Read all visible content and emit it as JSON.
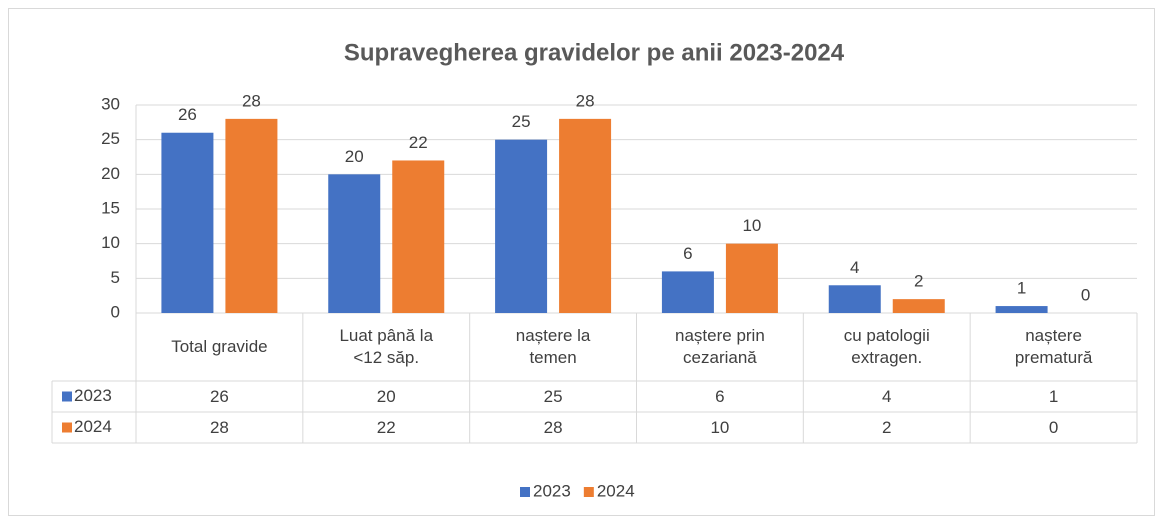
{
  "chart_data": {
    "type": "bar",
    "title": "Supravegherea gravidelor pe anii 2023-2024",
    "categories": [
      "Total gravide",
      "Luat până la\n<12 săp.",
      "naștere la\ntemen",
      "naștere prin\ncezariană",
      "cu patologii\nextragen.",
      "naștere\nprematură"
    ],
    "series": [
      {
        "name": "2023",
        "color": "#4472c4",
        "values": [
          26,
          20,
          25,
          6,
          4,
          1
        ]
      },
      {
        "name": "2024",
        "color": "#ed7d31",
        "values": [
          28,
          22,
          28,
          10,
          2,
          0
        ]
      }
    ],
    "ylim": [
      0,
      30
    ],
    "yticks": [
      0,
      5,
      10,
      15,
      20,
      25,
      30
    ],
    "grid": true,
    "legend": "bottom"
  }
}
